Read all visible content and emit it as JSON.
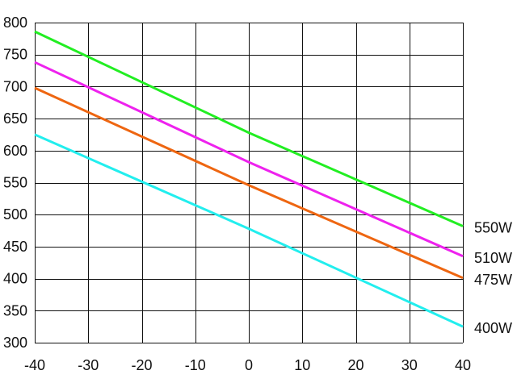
{
  "chart_data": {
    "type": "line",
    "title": "",
    "xlabel": "",
    "ylabel": "",
    "xlim": [
      -40,
      40
    ],
    "ylim": [
      300,
      800
    ],
    "x_ticks": [
      -40,
      -30,
      -20,
      -10,
      0,
      10,
      20,
      30,
      40
    ],
    "y_ticks": [
      300,
      350,
      400,
      450,
      500,
      550,
      600,
      650,
      700,
      750,
      800
    ],
    "grid": true,
    "legend": "right-of-plot, labels at line ends",
    "series": [
      {
        "name": "550W",
        "color": "#22ee22",
        "points": [
          [
            -40,
            786
          ],
          [
            0,
            628
          ],
          [
            40,
            482
          ]
        ]
      },
      {
        "name": "510W",
        "color": "#ee22ee",
        "points": [
          [
            -40,
            738
          ],
          [
            0,
            582
          ],
          [
            40,
            435
          ]
        ]
      },
      {
        "name": "475W",
        "color": "#ee6611",
        "points": [
          [
            -40,
            698
          ],
          [
            0,
            546
          ],
          [
            40,
            401
          ]
        ]
      },
      {
        "name": "400W",
        "color": "#22eeee",
        "points": [
          [
            -40,
            625
          ],
          [
            0,
            478
          ],
          [
            40,
            325
          ]
        ]
      }
    ]
  }
}
